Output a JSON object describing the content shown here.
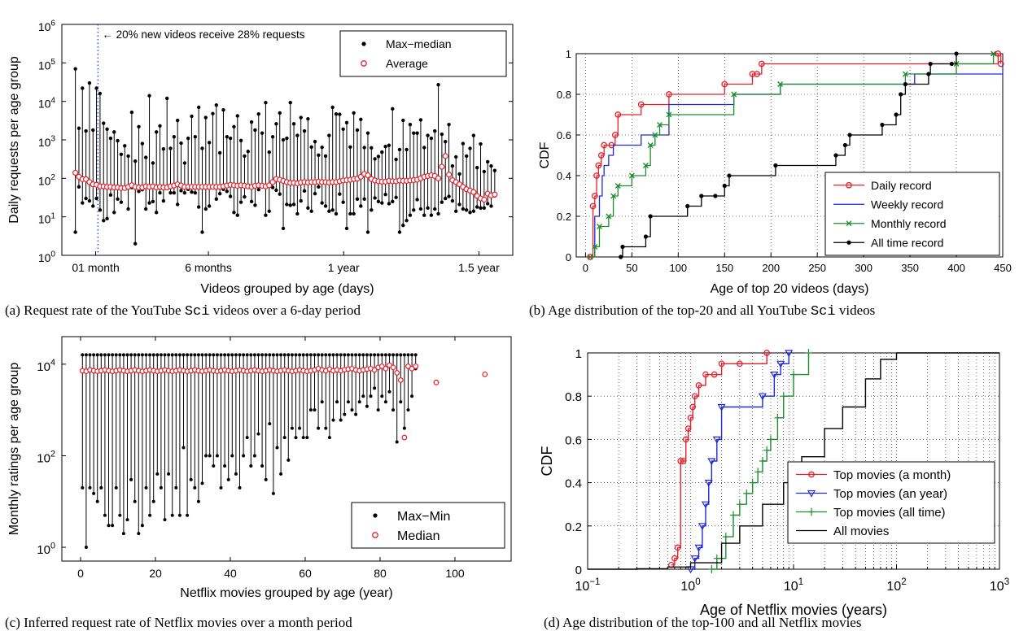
{
  "colors": {
    "red": "#e8202a",
    "blue": "#1f2ad6",
    "green": "#1e8c2c",
    "black": "#000000"
  },
  "captions": {
    "a": {
      "pre": "(a) Request rate of the YouTube ",
      "code": "Sci",
      "post": " videos over a 6-day period"
    },
    "b": {
      "pre": "(b) Age distribution of the top-20 and all YouTube ",
      "code": "Sci",
      "post": " videos"
    },
    "c": {
      "pre": "(c) Inferred request rate of Netflix movies over a month period"
    },
    "d": {
      "pre": "(d) Age distribution of the top-100 and all Netflix movies"
    }
  },
  "chart_data": [
    {
      "id": "a",
      "type": "scatter",
      "ylabel": "Daily requests per age group",
      "xlabel": "Videos grouped by age (days)",
      "yscale": "log",
      "ylim": [
        1,
        1000000
      ],
      "y_tick_labels": [
        {
          "base": "10",
          "exp": "0"
        },
        {
          "base": "10",
          "exp": "1"
        },
        {
          "base": "10",
          "exp": "2"
        },
        {
          "base": "10",
          "exp": "3"
        },
        {
          "base": "10",
          "exp": "4"
        },
        {
          "base": "10",
          "exp": "5"
        },
        {
          "base": "10",
          "exp": "6"
        }
      ],
      "x_tick_labels": [
        "01 month",
        "6 months",
        "1 year",
        "1.5 year"
      ],
      "x_tick_values": [
        1,
        6,
        12,
        18
      ],
      "xlim": [
        -0.5,
        19.5
      ],
      "annotation": "← 20% new videos receive 28% requests",
      "annotation_line_x": 1.1,
      "legend": {
        "position": "top-right",
        "entries": [
          "Max−median",
          "Average"
        ]
      },
      "n_groups": 120,
      "max_values": [
        70000,
        2000,
        22000,
        1700,
        30000,
        1800,
        22000,
        16000,
        2700,
        1900,
        1100,
        1600,
        950,
        420,
        700,
        380,
        5200,
        280,
        2200,
        800,
        350,
        14000,
        250,
        1600,
        2300,
        580,
        12000,
        600,
        1200,
        3200,
        820,
        250,
        1100,
        4100,
        1200,
        7000,
        600,
        3800,
        850,
        4800,
        8000,
        460,
        6000,
        1200,
        1100,
        2200,
        4200,
        960,
        380,
        500,
        2900,
        1800,
        4700,
        1500,
        9300,
        480,
        1200,
        2600,
        5000,
        1000,
        1100,
        9300,
        2600,
        1300,
        3800,
        1700,
        3500,
        650,
        900,
        400,
        640,
        380,
        1300,
        7000,
        4700,
        4600,
        1900,
        2800,
        650,
        5000,
        1800,
        3400,
        630,
        1500,
        620,
        320,
        370,
        480,
        670,
        720,
        6400,
        310,
        560,
        3200,
        560,
        2500,
        1500,
        1500,
        3300,
        630,
        1300,
        1100,
        1700,
        27000,
        1400,
        900,
        2500,
        210,
        360,
        130,
        800,
        380,
        600,
        1300,
        190,
        780,
        150,
        270,
        210,
        160
      ],
      "min_values": [
        4,
        60,
        23,
        30,
        26,
        19,
        30,
        15,
        8,
        9,
        37,
        13,
        29,
        24,
        58,
        16,
        58,
        2,
        46,
        51,
        16,
        23,
        25,
        13,
        42,
        26,
        58,
        42,
        42,
        21,
        48,
        42,
        52,
        44,
        42,
        18,
        4,
        16,
        19,
        60,
        29,
        40,
        52,
        46,
        34,
        13,
        11,
        24,
        33,
        64,
        25,
        20,
        51,
        64,
        11,
        14,
        58,
        49,
        39,
        5,
        21,
        20,
        21,
        12,
        26,
        47,
        17,
        14,
        40,
        60,
        23,
        19,
        14,
        15,
        12,
        39,
        24,
        5,
        12,
        12,
        29,
        19,
        29,
        4,
        15,
        31,
        25,
        23,
        38,
        22,
        25,
        32,
        4,
        6,
        8,
        11,
        15,
        28,
        16,
        11,
        17,
        11,
        16,
        12,
        24,
        30,
        34,
        26,
        14,
        21,
        16,
        15,
        13,
        14,
        18,
        17,
        17,
        22,
        19,
        35
      ],
      "avg_values": [
        140,
        110,
        95,
        95,
        80,
        70,
        68,
        62,
        62,
        60,
        60,
        58,
        58,
        56,
        56,
        60,
        66,
        60,
        58,
        58,
        62,
        60,
        62,
        58,
        60,
        58,
        58,
        62,
        65,
        70,
        65,
        60,
        60,
        60,
        60,
        60,
        60,
        60,
        60,
        60,
        60,
        60,
        62,
        65,
        68,
        66,
        64,
        66,
        64,
        62,
        60,
        64,
        66,
        64,
        62,
        66,
        80,
        96,
        92,
        86,
        80,
        76,
        76,
        74,
        78,
        80,
        78,
        80,
        80,
        82,
        80,
        80,
        78,
        80,
        80,
        84,
        88,
        90,
        92,
        96,
        98,
        110,
        130,
        120,
        96,
        88,
        84,
        82,
        82,
        86,
        84,
        84,
        88,
        86,
        86,
        88,
        90,
        92,
        100,
        110,
        115,
        120,
        115,
        100,
        200,
        380,
        125,
        90,
        80,
        70,
        60,
        52,
        48,
        44,
        35,
        30,
        28,
        40,
        36,
        38
      ]
    },
    {
      "id": "b",
      "type": "line",
      "ylabel": "CDF",
      "xlabel": "Age of top 20 videos (days)",
      "xlim": [
        -10,
        450
      ],
      "ylim": [
        0,
        1
      ],
      "x_ticks": [
        "0",
        "50",
        "100",
        "150",
        "200",
        "250",
        "300",
        "350",
        "400",
        "450"
      ],
      "y_ticks": [
        "0",
        "0.2",
        "0.4",
        "0.6",
        "0.8",
        "1"
      ],
      "grid": true,
      "legend_position": "bottom-right",
      "series": [
        {
          "name": "Daily record",
          "color": "red",
          "marker": "circle",
          "x": [
            5,
            8,
            10,
            12,
            14,
            17,
            20,
            28,
            32,
            35,
            60,
            90,
            150,
            180,
            185,
            190,
            445,
            448
          ],
          "y": [
            0,
            0.25,
            0.3,
            0.4,
            0.45,
            0.5,
            0.55,
            0.55,
            0.6,
            0.7,
            0.75,
            0.8,
            0.85,
            0.9,
            0.9,
            0.95,
            1,
            0.95
          ]
        },
        {
          "name": "Weekly record",
          "color": "blue",
          "marker": "none",
          "x": [
            5,
            10,
            15,
            18,
            20,
            25,
            30,
            35,
            60,
            90,
            160,
            210,
            355,
            450
          ],
          "y": [
            0,
            0.2,
            0.3,
            0.4,
            0.45,
            0.5,
            0.55,
            0.55,
            0.6,
            0.75,
            0.8,
            0.85,
            0.9,
            0.95
          ]
        },
        {
          "name": "Monthly record",
          "color": "green",
          "marker": "x",
          "x": [
            5,
            10,
            15,
            25,
            30,
            35,
            50,
            65,
            70,
            75,
            80,
            90,
            160,
            210,
            345,
            400,
            440
          ],
          "y": [
            0,
            0.05,
            0.15,
            0.2,
            0.3,
            0.35,
            0.4,
            0.45,
            0.55,
            0.6,
            0.65,
            0.7,
            0.8,
            0.85,
            0.9,
            0.95,
            1
          ]
        },
        {
          "name": "All time record",
          "color": "black",
          "marker": "dot",
          "x": [
            38,
            40,
            65,
            70,
            110,
            125,
            140,
            150,
            155,
            205,
            270,
            280,
            285,
            320,
            335,
            340,
            345,
            370,
            372,
            395,
            400
          ],
          "y": [
            0,
            0.05,
            0.1,
            0.2,
            0.25,
            0.3,
            0.3,
            0.35,
            0.4,
            0.45,
            0.5,
            0.55,
            0.6,
            0.65,
            0.7,
            0.8,
            0.85,
            0.9,
            0.95,
            0.95,
            1
          ]
        }
      ]
    },
    {
      "id": "c",
      "type": "scatter",
      "ylabel": "Monthly ratings per age group",
      "xlabel": "Netflix movies grouped by age (year)",
      "yscale": "log",
      "ylim": [
        0.5,
        40000
      ],
      "xlim": [
        -5,
        115
      ],
      "x_ticks": [
        "0",
        "20",
        "40",
        "60",
        "80",
        "100"
      ],
      "y_tick_labels": [
        {
          "base": "10",
          "exp": "0"
        },
        {
          "base": "10",
          "exp": "2"
        },
        {
          "base": "10",
          "exp": "4"
        }
      ],
      "legend": {
        "position": "bottom-right",
        "entries": [
          "Max−Min",
          "Median"
        ]
      },
      "max_value": 16000,
      "min_values": [
        20,
        1,
        20,
        15,
        10,
        20,
        5,
        3,
        3,
        20,
        5,
        2,
        4,
        30,
        10,
        2,
        3,
        20,
        5,
        10,
        40,
        20,
        4,
        40,
        5,
        20,
        5,
        150,
        5,
        30,
        20,
        10,
        25,
        100,
        100,
        60,
        100,
        20,
        60,
        30,
        100,
        40,
        20,
        100,
        250,
        60,
        100,
        300,
        60,
        30,
        500,
        15,
        150,
        40,
        250,
        80,
        400,
        250,
        400,
        250,
        250,
        1000,
        1000,
        400,
        1500,
        400,
        250,
        600,
        1500,
        600,
        800,
        1500,
        1000,
        800,
        1500,
        2000,
        1200,
        2000,
        3000,
        1000,
        2000,
        1500,
        2500,
        1000,
        200,
        1500,
        400,
        1000,
        2000,
        8000
      ],
      "median_values": [
        7200,
        7000,
        7500,
        7200,
        7000,
        7200,
        7500,
        7200,
        7000,
        7200,
        7500,
        7200,
        7000,
        7200,
        7500,
        7200,
        7000,
        7200,
        7500,
        7200,
        7000,
        7200,
        7500,
        7200,
        7000,
        7200,
        7500,
        7200,
        7000,
        7200,
        7500,
        7200,
        7000,
        7200,
        7500,
        7200,
        7000,
        7200,
        7500,
        7200,
        7000,
        7200,
        7500,
        7200,
        7000,
        7200,
        7500,
        7200,
        7000,
        7200,
        7500,
        7200,
        7000,
        7200,
        7500,
        7200,
        7000,
        7200,
        7500,
        7200,
        7000,
        7200,
        7500,
        8000,
        7500,
        7200,
        7800,
        7200,
        7500,
        7200,
        7600,
        7800,
        8000,
        7500,
        7200,
        7500,
        7800,
        8000,
        7500,
        8500,
        9000,
        8000,
        9500,
        8500,
        6500,
        4500,
        250,
        9000,
        8000,
        9000
      ],
      "outliers": [
        [
          95,
          4000
        ],
        [
          108,
          6000
        ]
      ]
    },
    {
      "id": "d",
      "type": "line",
      "ylabel": "CDF",
      "xlabel": "Age of Netflix movies (years)",
      "xscale": "log",
      "xlim": [
        0.1,
        1000
      ],
      "ylim": [
        0,
        1
      ],
      "x_tick_labels": [
        {
          "base": "10",
          "exp": "−1"
        },
        {
          "base": "10",
          "exp": "0"
        },
        {
          "base": "10",
          "exp": "1"
        },
        {
          "base": "10",
          "exp": "2"
        },
        {
          "base": "10",
          "exp": "3"
        }
      ],
      "y_ticks": [
        "0",
        "0.2",
        "0.4",
        "0.6",
        "0.8",
        "1"
      ],
      "grid": true,
      "legend_position": "bottom-right",
      "series": [
        {
          "name": "Top movies (a month)",
          "color": "red",
          "marker": "circle",
          "x": [
            0.65,
            0.7,
            0.75,
            0.8,
            0.85,
            0.9,
            0.95,
            1.0,
            1.05,
            1.1,
            1.2,
            1.4,
            1.7,
            2.0,
            3.0,
            5.5
          ],
          "y": [
            0.02,
            0.05,
            0.1,
            0.5,
            0.5,
            0.6,
            0.65,
            0.7,
            0.75,
            0.8,
            0.85,
            0.9,
            0.9,
            0.95,
            0.95,
            1.0
          ]
        },
        {
          "name": "Top movies (an year)",
          "color": "blue",
          "marker": "triangle",
          "x": [
            1.0,
            1.1,
            1.2,
            1.3,
            1.4,
            1.5,
            1.6,
            1.8,
            2.0,
            5.0,
            6.5,
            7.5,
            9.0
          ],
          "y": [
            0.0,
            0.05,
            0.1,
            0.2,
            0.3,
            0.4,
            0.5,
            0.6,
            0.75,
            0.8,
            0.9,
            0.95,
            1.0
          ]
        },
        {
          "name": "Top movies (all time)",
          "color": "green",
          "marker": "plus",
          "x": [
            1.6,
            1.8,
            2.2,
            2.6,
            3.0,
            3.5,
            4.0,
            4.5,
            5.0,
            5.5,
            6.0,
            7.0,
            8.0,
            10,
            14
          ],
          "y": [
            0.0,
            0.05,
            0.15,
            0.25,
            0.3,
            0.35,
            0.4,
            0.45,
            0.5,
            0.55,
            0.6,
            0.7,
            0.8,
            0.9,
            1.0
          ]
        },
        {
          "name": "All movies",
          "color": "black",
          "marker": "none",
          "x": [
            0.1,
            0.3,
            0.6,
            1.0,
            2.0,
            3.0,
            5.0,
            8.0,
            12,
            20,
            30,
            50,
            70,
            100,
            1000
          ],
          "y": [
            0.0,
            0.002,
            0.01,
            0.03,
            0.12,
            0.2,
            0.3,
            0.4,
            0.52,
            0.65,
            0.75,
            0.88,
            0.97,
            1.0,
            1.0
          ]
        }
      ]
    }
  ]
}
